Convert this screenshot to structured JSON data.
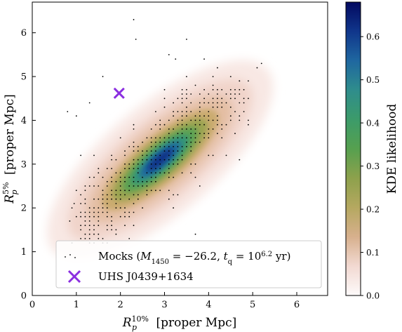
{
  "chart_data": {
    "type": "scatter",
    "title": "",
    "xlabel": {
      "base": "R",
      "sup": "10%",
      "sub": "p",
      "unit": "[proper Mpc]"
    },
    "ylabel": {
      "base": "R",
      "sup": "5%",
      "sub": "p",
      "unit": "[proper Mpc]"
    },
    "xlim": [
      0,
      6.7
    ],
    "ylim": [
      0,
      6.7
    ],
    "x_ticks": [
      "0",
      "1",
      "2",
      "3",
      "4",
      "5",
      "6"
    ],
    "y_ticks": [
      "0",
      "1",
      "2",
      "3",
      "4",
      "5",
      "6"
    ],
    "grid": false,
    "colorbar": {
      "label": "KDE likelihood",
      "range": [
        0,
        0.68
      ],
      "ticks": [
        "0.0",
        "0.1",
        "0.2",
        "0.3",
        "0.4",
        "0.5",
        "0.6"
      ],
      "colormap": "gist_earth_r"
    },
    "kde": {
      "center": [
        2.9,
        3.1
      ],
      "peak": 0.68,
      "description": "density ridge along the diagonal"
    },
    "series": [
      {
        "name": "Mocks",
        "marker": "dot",
        "color": "#000000",
        "points_description": "grid of mock realizations concentrated along the diagonal",
        "outliers": [
          [
            2.3,
            6.3
          ],
          [
            2.35,
            5.85
          ],
          [
            3.5,
            5.85
          ],
          [
            3.1,
            5.5
          ],
          [
            3.25,
            5.4
          ],
          [
            3.9,
            5.4
          ],
          [
            4.2,
            5.2
          ],
          [
            5.1,
            5.2
          ],
          [
            5.2,
            5.3
          ],
          [
            0.8,
            4.2
          ],
          [
            1.3,
            4.4
          ],
          [
            1.0,
            4.1
          ],
          [
            1.1,
            3.2
          ],
          [
            0.85,
            1.7
          ],
          [
            0.9,
            2.0
          ],
          [
            0.95,
            2.1
          ],
          [
            1.6,
            5.0
          ],
          [
            4.7,
            4.9
          ]
        ]
      },
      {
        "name": "UHS J0439+1634",
        "marker": "x",
        "color": "#8b2fe0",
        "x": 1.97,
        "y": 4.62
      }
    ],
    "legend": {
      "placement": "lower-right",
      "entries": [
        {
          "series": "Mocks",
          "parts": [
            {
              "t": "Mocks (",
              "style": "normal"
            },
            {
              "t": "M",
              "style": "italic"
            },
            {
              "t": "1450",
              "style": "sub"
            },
            {
              "t": " = −26.2, ",
              "style": "normal"
            },
            {
              "t": "t",
              "style": "italic"
            },
            {
              "t": "q",
              "style": "sub"
            },
            {
              "t": " = 10",
              "style": "normal"
            },
            {
              "t": "6.2",
              "style": "sup"
            },
            {
              "t": " yr)",
              "style": "normal"
            }
          ]
        },
        {
          "series": "UHS J0439+1634",
          "parts": [
            {
              "t": "UHS J0439+1634",
              "style": "normal"
            }
          ]
        }
      ]
    }
  }
}
